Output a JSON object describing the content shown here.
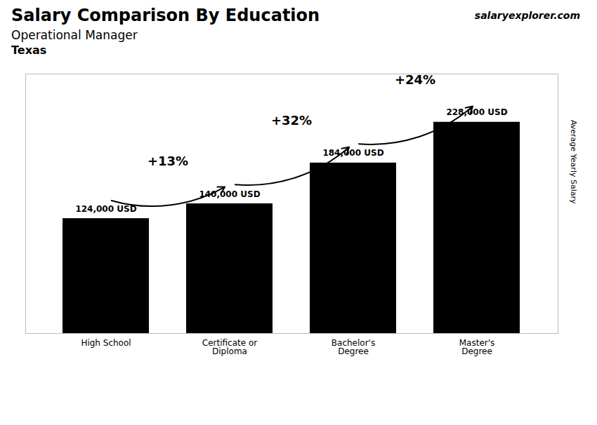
{
  "chart_data": {
    "type": "bar",
    "title": "Salary Comparison By Education",
    "subtitle": "Operational Manager",
    "annotations": [
      "Texas",
      "salaryexplorer.com"
    ],
    "ylabel": "Average Yearly Salary",
    "categories": [
      "High School",
      "Certificate or\nDiploma",
      "Bachelor's\nDegree",
      "Master's\nDegree"
    ],
    "values": [
      124000,
      140000,
      184000,
      228000
    ],
    "value_labels": [
      "124,000 USD",
      "140,000 USD",
      "184,000 USD",
      "228,000 USD"
    ],
    "change_labels": [
      "+13%",
      "+32%",
      "+24%"
    ],
    "data_labels": true,
    "ylim": [
      0,
      280000
    ],
    "tick_labels": "x",
    "grid": false
  }
}
